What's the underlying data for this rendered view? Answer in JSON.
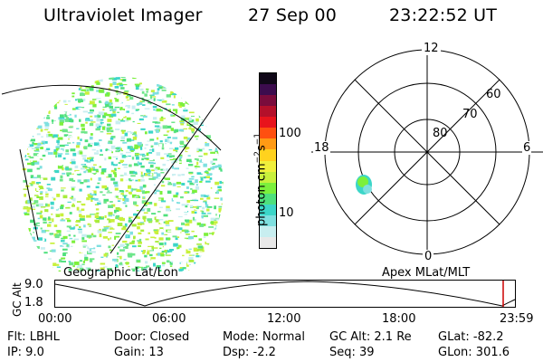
{
  "header": {
    "instrument": "Ultraviolet Imager",
    "date": "27 Sep 00",
    "time": "23:22:52 UT"
  },
  "colorbar": {
    "label_main": "photon cm",
    "label_exp1": "−2",
    "label_mid": "s",
    "label_exp2": "−1",
    "tick_100": "100",
    "tick_10": "10",
    "colors": [
      "#e8e8e8",
      "#c8eef0",
      "#7fe0e0",
      "#3cd6c8",
      "#4ee07c",
      "#7cf03c",
      "#c8f03c",
      "#f0f03c",
      "#ffd21e",
      "#ff9a14",
      "#ff5010",
      "#e8141c",
      "#b4102a",
      "#7a0c3c",
      "#3c0c4e",
      "#100818"
    ]
  },
  "polar_plot": {
    "labels": {
      "top": "12",
      "bottom": "0",
      "left": "18",
      "right": "6"
    },
    "rings": [
      "80",
      "70",
      "60"
    ]
  },
  "left_label": "Geographic Lat/Lon",
  "right_label": "Apex MLat/MLT",
  "altitude_plot": {
    "ylabel": "GC Alt",
    "y_ticks": [
      "9.0",
      "1.8"
    ],
    "x_ticks": [
      "00:00",
      "06:00",
      "12:00",
      "18:00",
      "23:59"
    ],
    "marker_color": "#cc0000"
  },
  "info": {
    "flt": "Flt:  LBHL",
    "ip": "IP:  9.0",
    "door": "Door:  Closed",
    "gain": "Gain:  13",
    "mode": "Mode:  Normal",
    "dsp": "Dsp:    -2.2",
    "gcalt": "GC Alt:  2.1 Re",
    "seq": "Seq:  39",
    "glat": "GLat:  -82.2",
    "glon": "GLon:  301.6"
  }
}
